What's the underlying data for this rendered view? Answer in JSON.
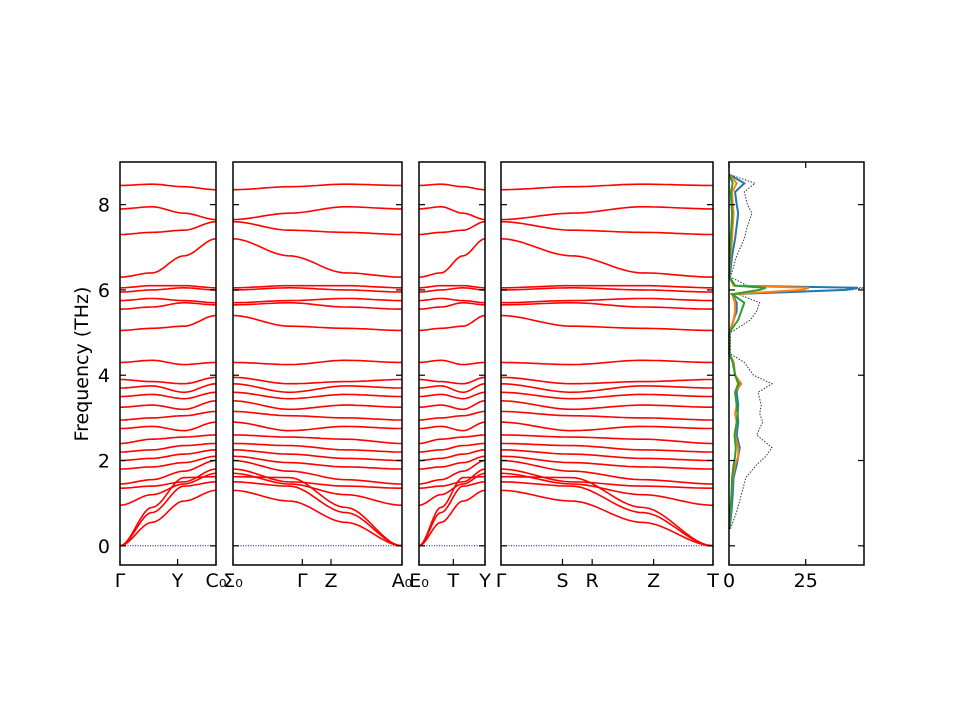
{
  "chart_data": {
    "type": "line",
    "ylabel": "Frequency (THz)",
    "ylim": [
      -0.45,
      9.0
    ],
    "yticks": [
      0,
      2,
      4,
      6,
      8
    ],
    "colors": {
      "bands": "#ff0000",
      "zero_line": "#0000cc",
      "dos_total": "#333333",
      "dos_partials": [
        "#1f77b4",
        "#ff7f0e",
        "#2ca02c"
      ]
    },
    "band_panels": [
      {
        "tick_labels": [
          "Γ",
          "Y",
          "C₀"
        ],
        "tick_positions": [
          0,
          0.6,
          1.0
        ]
      },
      {
        "tick_labels": [
          "Σ₀",
          "Γ",
          "Z",
          "A₀"
        ],
        "tick_positions": [
          0,
          0.41,
          0.58,
          1.0
        ]
      },
      {
        "tick_labels": [
          "E₀",
          "T",
          "Y"
        ],
        "tick_positions": [
          0,
          0.52,
          1.0
        ]
      },
      {
        "tick_labels": [
          "Γ",
          "S",
          "R",
          "Z",
          "T"
        ],
        "tick_positions": [
          0,
          0.29,
          0.43,
          0.72,
          1.0
        ]
      }
    ],
    "bands": [
      [
        0.0,
        0.9,
        1.6,
        1.62
      ],
      [
        0.0,
        0.78,
        1.4,
        1.5
      ],
      [
        0.0,
        0.55,
        1.05,
        1.3
      ],
      [
        0.95,
        1.2,
        1.45,
        1.7
      ],
      [
        1.35,
        1.4,
        1.5,
        1.8
      ],
      [
        1.45,
        1.55,
        1.75,
        2.0
      ],
      [
        1.8,
        1.85,
        1.95,
        2.1
      ],
      [
        2.0,
        2.05,
        2.15,
        2.25
      ],
      [
        2.2,
        2.25,
        2.35,
        2.4
      ],
      [
        2.4,
        2.5,
        2.55,
        2.6
      ],
      [
        2.75,
        2.8,
        2.7,
        2.9
      ],
      [
        2.95,
        3.0,
        3.05,
        3.15
      ],
      [
        3.25,
        3.3,
        3.2,
        3.4
      ],
      [
        3.5,
        3.55,
        3.45,
        3.6
      ],
      [
        3.7,
        3.75,
        3.6,
        3.8
      ],
      [
        3.9,
        3.85,
        3.8,
        3.95
      ],
      [
        4.3,
        4.35,
        4.25,
        4.3
      ],
      [
        5.05,
        5.1,
        5.15,
        5.4
      ],
      [
        5.55,
        5.6,
        5.7,
        5.65
      ],
      [
        5.75,
        5.8,
        5.75,
        5.7
      ],
      [
        5.95,
        6.0,
        6.05,
        6.0
      ],
      [
        6.05,
        6.1,
        6.1,
        6.05
      ],
      [
        6.3,
        6.4,
        6.8,
        7.2
      ],
      [
        7.3,
        7.35,
        7.4,
        7.6
      ],
      [
        7.9,
        7.95,
        7.8,
        7.65
      ],
      [
        8.45,
        8.48,
        8.42,
        8.35
      ]
    ],
    "dos": {
      "xlim": [
        0,
        44
      ],
      "xticks": [
        0,
        25
      ],
      "frequency": [
        0.4,
        0.8,
        1.2,
        1.6,
        1.9,
        2.1,
        2.3,
        2.6,
        2.9,
        3.1,
        3.3,
        3.6,
        3.8,
        4.0,
        4.3,
        4.5,
        5.0,
        5.3,
        5.5,
        5.7,
        5.9,
        6.0,
        6.05,
        6.1,
        6.3,
        6.8,
        7.2,
        7.5,
        7.8,
        8.0,
        8.3,
        8.5,
        8.7
      ],
      "total": [
        0.5,
        2.5,
        4.0,
        5.5,
        9.0,
        12.0,
        14.0,
        9.0,
        11.0,
        10.0,
        10.5,
        9.5,
        14.0,
        8.0,
        5.0,
        0.5,
        0.5,
        7.0,
        9.0,
        10.0,
        3.0,
        40.0,
        44.0,
        6.0,
        0.5,
        2.5,
        5.0,
        6.0,
        7.5,
        6.0,
        5.0,
        8.5,
        0.5
      ],
      "partials": [
        {
          "values": [
            0.2,
            0.8,
            1.2,
            1.5,
            2.5,
            3.0,
            3.5,
            2.5,
            3.0,
            2.8,
            3.0,
            2.5,
            3.5,
            2.0,
            1.5,
            0.2,
            0.2,
            1.5,
            2.5,
            2.5,
            1.0,
            38.0,
            42.0,
            2.0,
            0.2,
            1.0,
            2.0,
            2.5,
            3.0,
            2.5,
            2.0,
            5.0,
            0.2
          ]
        },
        {
          "values": [
            0.1,
            0.5,
            0.8,
            1.2,
            2.0,
            3.0,
            3.0,
            2.0,
            2.5,
            2.0,
            2.5,
            2.0,
            4.0,
            2.0,
            1.5,
            0.1,
            0.1,
            1.5,
            2.0,
            2.0,
            1.0,
            24.0,
            26.0,
            1.5,
            0.1,
            0.5,
            1.0,
            1.2,
            1.5,
            1.2,
            1.0,
            2.5,
            0.1
          ]
        },
        {
          "values": [
            0.1,
            0.4,
            0.8,
            1.0,
            1.5,
            2.0,
            2.2,
            1.8,
            2.5,
            2.8,
            2.5,
            2.0,
            3.0,
            2.0,
            1.2,
            0.1,
            0.1,
            3.0,
            4.0,
            5.0,
            1.0,
            10.0,
            12.0,
            2.0,
            0.1,
            0.3,
            0.5,
            0.8,
            1.0,
            0.8,
            0.6,
            1.2,
            0.1
          ]
        }
      ]
    }
  }
}
